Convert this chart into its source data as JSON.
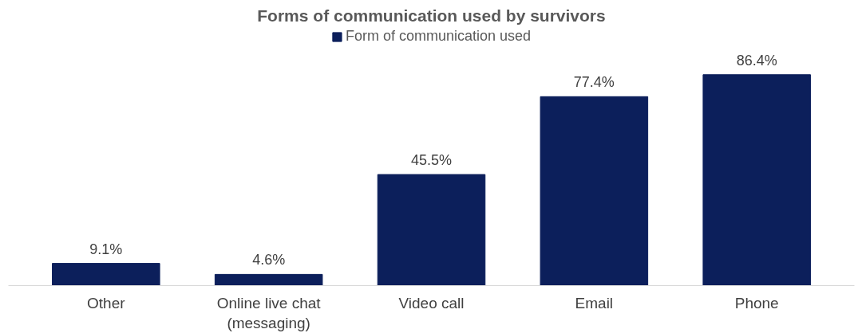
{
  "chart_data": {
    "type": "bar",
    "title": "Forms of communication used by survivors",
    "categories": [
      "Other",
      "Online live chat\n(messaging)",
      "Video call",
      "Email",
      "Phone"
    ],
    "series": [
      {
        "name": "Form of communication used",
        "color": "#0c1f5b",
        "values": [
          9.1,
          4.6,
          45.5,
          77.4,
          86.4
        ],
        "value_labels": [
          "9.1%",
          "4.6%",
          "45.5%",
          "77.4%",
          "86.4%"
        ]
      }
    ],
    "legend": "top"
  }
}
